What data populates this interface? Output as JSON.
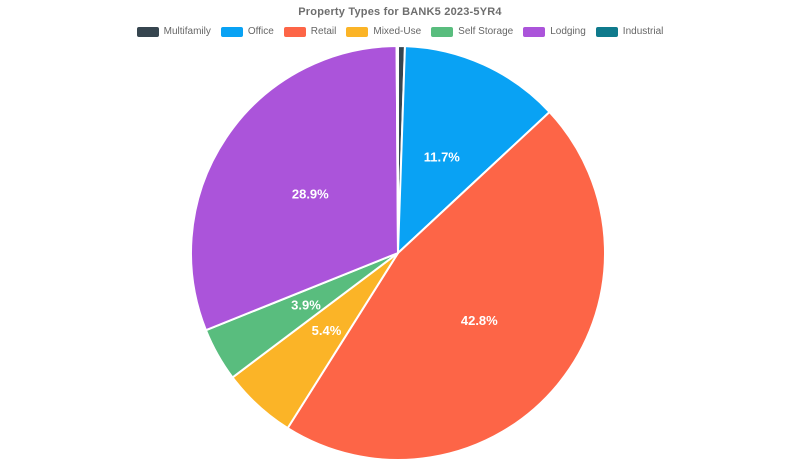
{
  "chart_data": {
    "type": "pie",
    "title": "Property Types for BANK5 2023-5YR4",
    "legend_position": "top",
    "direction": "clockwise",
    "start_angle_deg": 0,
    "label_color": "#ffffff",
    "background_color": "#ffffff",
    "series": [
      {
        "name": "Multifamily",
        "value": 0.5,
        "display_label": "",
        "color": "#36454F"
      },
      {
        "name": "Office",
        "value": 11.7,
        "display_label": "11.7%",
        "color": "#09A2F4"
      },
      {
        "name": "Retail",
        "value": 42.8,
        "display_label": "42.8%",
        "color": "#FD6547"
      },
      {
        "name": "Mixed-Use",
        "value": 5.4,
        "display_label": "5.4%",
        "color": "#FBB427"
      },
      {
        "name": "Self Storage",
        "value": 3.9,
        "display_label": "3.9%",
        "color": "#59BD7E"
      },
      {
        "name": "Lodging",
        "value": 28.9,
        "display_label": "28.9%",
        "color": "#AB54DA"
      },
      {
        "name": "Industrial",
        "value": 0.1,
        "display_label": "",
        "color": "#0F7A8C"
      }
    ]
  }
}
